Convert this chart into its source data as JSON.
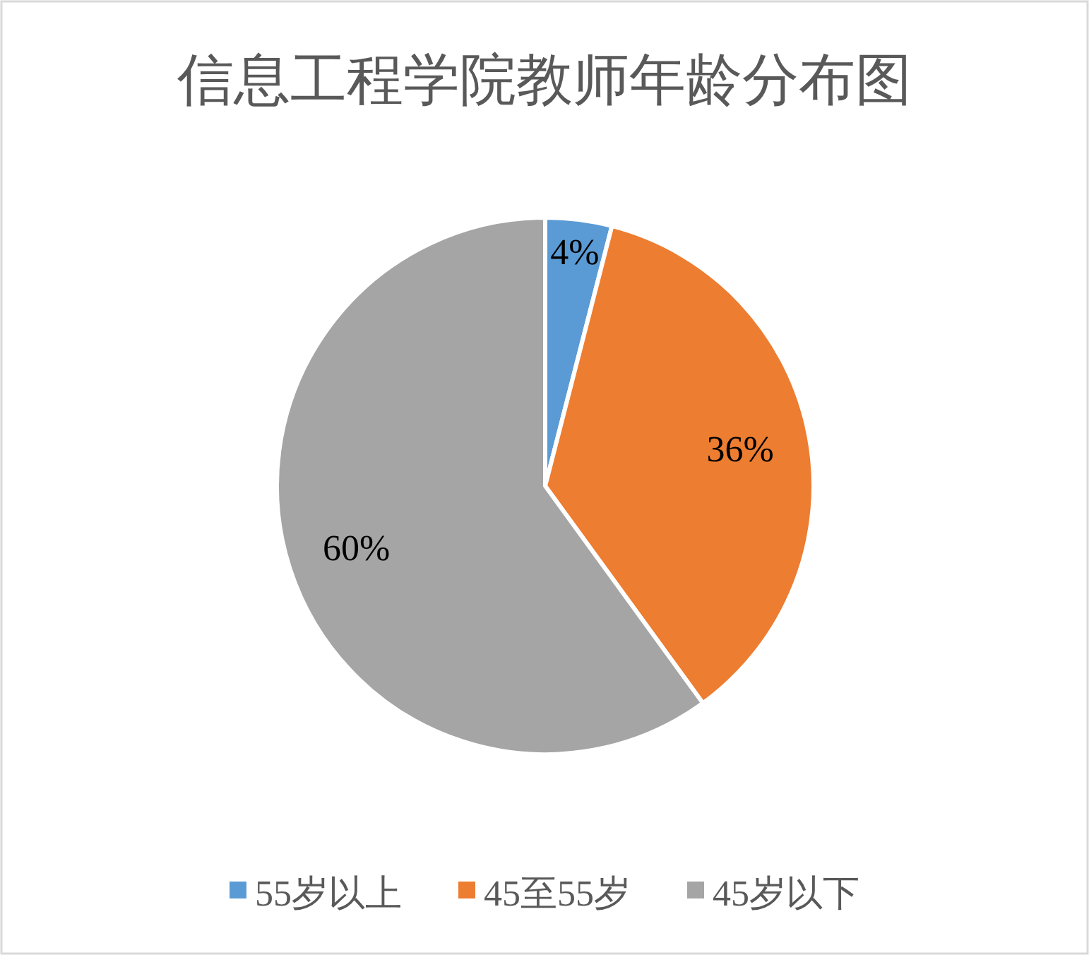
{
  "chart_data": {
    "type": "pie",
    "title": "信息工程学院教师年龄分布图",
    "categories": [
      "55岁以上",
      "45至55岁",
      "45岁以下"
    ],
    "values": [
      4,
      36,
      60
    ],
    "value_labels": [
      "4%",
      "36%",
      "60%"
    ],
    "colors": [
      "#5b9bd5",
      "#ed7d31",
      "#a5a5a5"
    ],
    "legend": "bottom"
  }
}
